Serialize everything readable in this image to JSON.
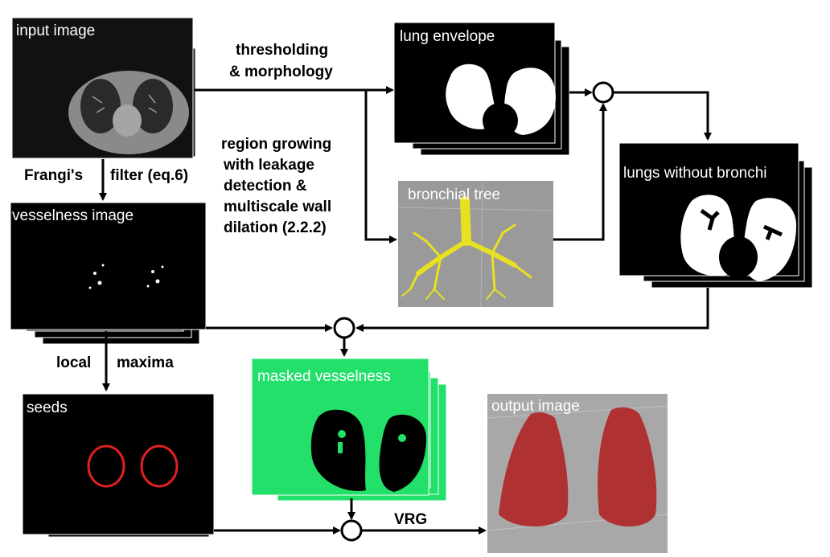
{
  "nodes": {
    "input_image": "input image",
    "lung_envelope": "lung envelope",
    "lungs_without_bronchi": "lungs without bronchi",
    "bronchial_tree": "bronchial tree",
    "vesselness_image": "vesselness image",
    "masked_vesselness": "masked vesselness",
    "seeds": "seeds",
    "output_image": "output image"
  },
  "edges": {
    "thresholding_1": "thresholding",
    "thresholding_2": "& morphology",
    "frangi_1": "Frangi's",
    "frangi_2": "filter (eq.6)",
    "region_1": "region growing",
    "region_2": "with leakage",
    "region_3": "detection &",
    "region_4": "multiscale wall",
    "region_5": "dilation (2.2.2)",
    "local_1": "local",
    "local_2": "maxima",
    "vrg": "VRG"
  },
  "colors": {
    "masked_vesselness_bg": "#22e06a",
    "seed_circle": "#e02020",
    "vessel_tree": "#b02020",
    "bronchi": "#e8e020"
  }
}
